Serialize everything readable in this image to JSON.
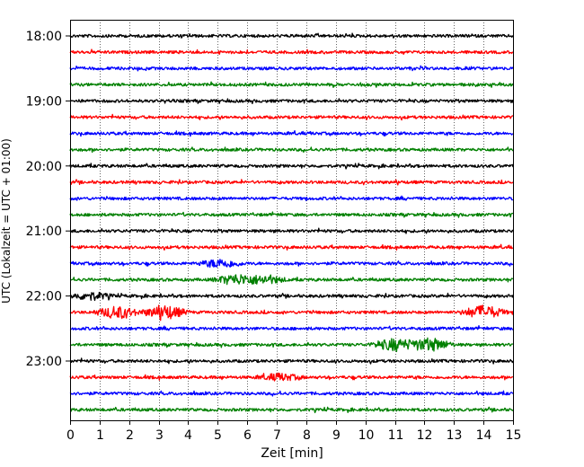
{
  "chart_data": {
    "type": "line",
    "subtype": "helicorder",
    "xlabel": "Zeit  [min]",
    "ylabel": "UTC (Lokalzeit = UTC + 01:00)",
    "xlim": [
      0,
      15
    ],
    "x_ticks": [
      0,
      1,
      2,
      3,
      4,
      5,
      6,
      7,
      8,
      9,
      10,
      11,
      12,
      13,
      14,
      15
    ],
    "x_grid": "dotted",
    "trace_minutes": 15,
    "trace_colors": [
      "#000000",
      "#ff0000",
      "#0000ff",
      "#008000"
    ],
    "traces": [
      {
        "start": "18:00",
        "label": "18:00",
        "events": []
      },
      {
        "start": "18:15",
        "label": "",
        "events": []
      },
      {
        "start": "18:30",
        "label": "",
        "events": []
      },
      {
        "start": "18:45",
        "label": "",
        "events": []
      },
      {
        "start": "19:00",
        "label": "19:00",
        "events": []
      },
      {
        "start": "19:15",
        "label": "",
        "events": []
      },
      {
        "start": "19:30",
        "label": "",
        "events": []
      },
      {
        "start": "19:45",
        "label": "",
        "events": []
      },
      {
        "start": "20:00",
        "label": "20:00",
        "events": []
      },
      {
        "start": "20:15",
        "label": "",
        "events": []
      },
      {
        "start": "20:30",
        "label": "",
        "events": []
      },
      {
        "start": "20:45",
        "label": "",
        "events": []
      },
      {
        "start": "21:00",
        "label": "21:00",
        "events": []
      },
      {
        "start": "21:15",
        "label": "",
        "events": []
      },
      {
        "start": "21:30",
        "label": "",
        "events": [
          {
            "t": 5.1,
            "amp": 0.9
          }
        ]
      },
      {
        "start": "21:45",
        "label": "",
        "events": [
          {
            "t": 5.6,
            "amp": 1.1
          },
          {
            "t": 6.6,
            "amp": 0.8
          }
        ]
      },
      {
        "start": "22:00",
        "label": "22:00",
        "events": [
          {
            "t": 0.7,
            "amp": 0.8
          }
        ]
      },
      {
        "start": "22:15",
        "label": "",
        "events": [
          {
            "t": 1.6,
            "amp": 1.3
          },
          {
            "t": 3.2,
            "amp": 1.5
          },
          {
            "t": 14.0,
            "amp": 1.4
          }
        ]
      },
      {
        "start": "22:30",
        "label": "",
        "events": []
      },
      {
        "start": "22:45",
        "label": "",
        "events": [
          {
            "t": 11.0,
            "amp": 1.3
          },
          {
            "t": 12.2,
            "amp": 1.4
          }
        ]
      },
      {
        "start": "23:00",
        "label": "23:00",
        "events": []
      },
      {
        "start": "23:15",
        "label": "",
        "events": [
          {
            "t": 7.1,
            "amp": 0.7
          }
        ]
      },
      {
        "start": "23:30",
        "label": "",
        "events": []
      },
      {
        "start": "23:45",
        "label": "",
        "events": []
      }
    ]
  }
}
